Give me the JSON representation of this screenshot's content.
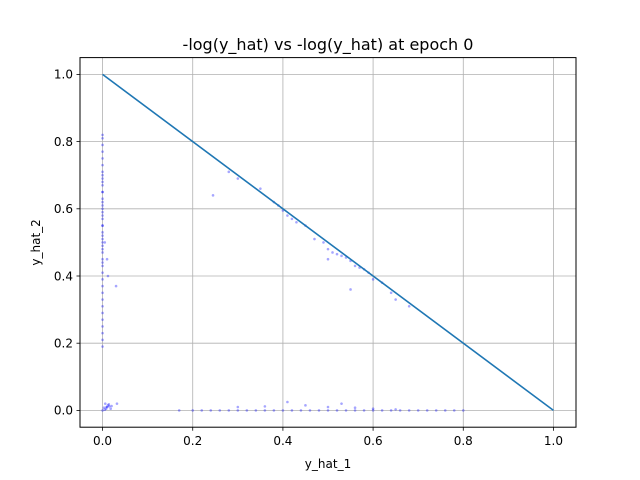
{
  "chart_data": {
    "type": "scatter",
    "title": "-log(y_hat) vs -log(y_hat) at epoch 0",
    "xlabel": "y_hat_1",
    "ylabel": "y_hat_2",
    "xlim": [
      -0.05,
      1.05
    ],
    "ylim": [
      -0.05,
      1.05
    ],
    "xticks": [
      "0.0",
      "0.2",
      "0.4",
      "0.6",
      "0.8",
      "1.0"
    ],
    "yticks": [
      "0.0",
      "0.2",
      "0.4",
      "0.6",
      "0.8",
      "1.0"
    ],
    "grid": true,
    "colors": {
      "points": "#0000ff",
      "line": "#1f77b4",
      "grid": "#b0b0b0"
    },
    "series": [
      {
        "type": "line",
        "x": [
          0.0,
          1.0
        ],
        "y": [
          1.0,
          0.0
        ]
      },
      {
        "type": "scatter",
        "x": [
          0.0,
          0.0,
          0.0,
          0.0,
          0.0,
          0.0,
          0.0,
          0.0,
          0.0,
          0.0,
          0.0,
          0.0,
          0.0,
          0.0,
          0.0,
          0.0,
          0.0,
          0.0,
          0.0,
          0.0,
          0.0,
          0.0,
          0.0,
          0.0,
          0.0,
          0.0,
          0.0,
          0.0,
          0.0,
          0.0,
          0.0,
          0.0,
          0.0,
          0.0,
          0.0,
          0.0,
          0.0,
          0.0,
          0.0,
          0.0,
          0.0,
          0.0,
          0.0,
          0.0,
          0.005,
          0.01,
          0.012,
          0.03,
          0.0,
          0.005,
          0.008,
          0.01,
          0.012,
          0.015,
          0.003,
          0.006,
          0.009,
          0.014,
          0.02,
          0.018,
          0.032,
          0.245,
          0.28,
          0.3,
          0.35,
          0.38,
          0.39,
          0.4,
          0.41,
          0.42,
          0.43,
          0.45,
          0.47,
          0.49,
          0.5,
          0.51,
          0.52,
          0.53,
          0.54,
          0.55,
          0.56,
          0.57,
          0.58,
          0.59,
          0.6,
          0.62,
          0.64,
          0.65,
          0.68,
          0.55,
          0.5,
          0.17,
          0.2,
          0.22,
          0.24,
          0.26,
          0.28,
          0.3,
          0.32,
          0.34,
          0.36,
          0.38,
          0.4,
          0.42,
          0.44,
          0.46,
          0.48,
          0.5,
          0.52,
          0.54,
          0.56,
          0.58,
          0.6,
          0.62,
          0.64,
          0.66,
          0.68,
          0.7,
          0.72,
          0.74,
          0.76,
          0.78,
          0.8,
          0.3,
          0.36,
          0.41,
          0.45,
          0.5,
          0.53,
          0.56,
          0.6,
          0.65
        ],
        "y": [
          0.19,
          0.21,
          0.23,
          0.25,
          0.27,
          0.29,
          0.31,
          0.33,
          0.35,
          0.37,
          0.39,
          0.41,
          0.43,
          0.45,
          0.47,
          0.49,
          0.51,
          0.53,
          0.55,
          0.57,
          0.59,
          0.61,
          0.63,
          0.65,
          0.67,
          0.69,
          0.71,
          0.73,
          0.75,
          0.77,
          0.79,
          0.81,
          0.82,
          0.44,
          0.52,
          0.58,
          0.62,
          0.5,
          0.48,
          0.55,
          0.6,
          0.65,
          0.7,
          0.68,
          0.5,
          0.45,
          0.4,
          0.37,
          0.0,
          0.002,
          0.005,
          0.01,
          0.015,
          0.012,
          0.008,
          0.02,
          0.01,
          0.018,
          0.013,
          0.005,
          0.02,
          0.64,
          0.71,
          0.69,
          0.66,
          0.62,
          0.61,
          0.595,
          0.58,
          0.57,
          0.56,
          0.55,
          0.51,
          0.5,
          0.48,
          0.47,
          0.465,
          0.46,
          0.455,
          0.445,
          0.43,
          0.425,
          0.42,
          0.41,
          0.39,
          0.38,
          0.35,
          0.33,
          0.31,
          0.36,
          0.45,
          0.0,
          0.0,
          0.0,
          0.0,
          0.0,
          0.0,
          0.0,
          0.0,
          0.0,
          0.0,
          0.0,
          0.0,
          0.0,
          0.0,
          0.0,
          0.0,
          0.0,
          0.0,
          0.0,
          0.0,
          0.0,
          0.0,
          0.0,
          0.0,
          0.0,
          0.0,
          0.0,
          0.0,
          0.0,
          0.0,
          0.0,
          0.0,
          0.01,
          0.012,
          0.025,
          0.015,
          0.01,
          0.02,
          0.008,
          0.005,
          0.003
        ]
      }
    ]
  }
}
